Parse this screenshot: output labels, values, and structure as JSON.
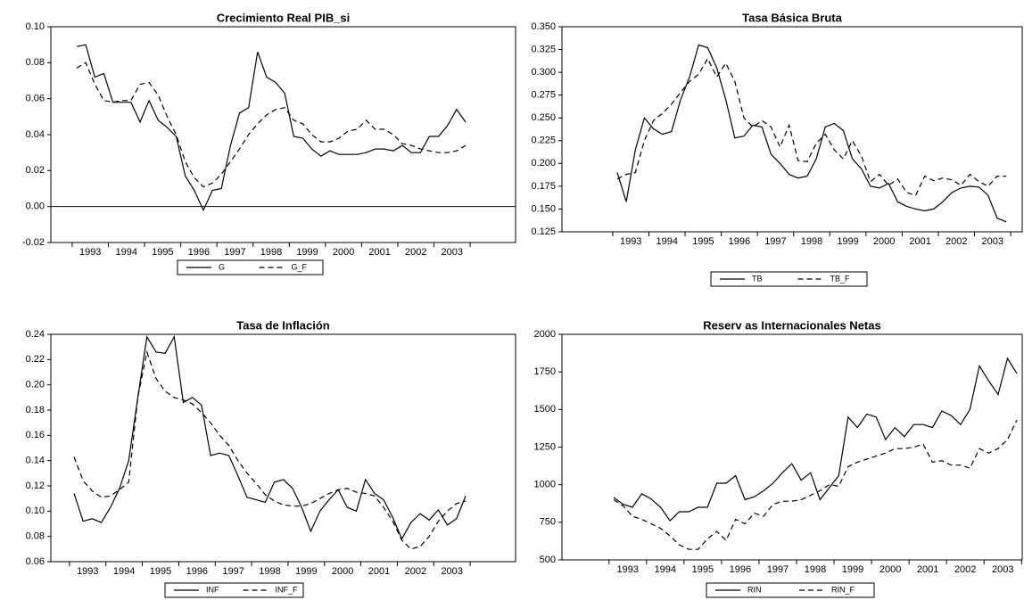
{
  "chart_data": [
    {
      "type": "line",
      "title": "Crecimiento Real PIB_si",
      "categories": [
        null,
        "1993",
        null,
        null,
        null,
        "1994",
        null,
        null,
        null,
        "1995",
        null,
        null,
        null,
        "1996",
        null,
        null,
        null,
        "1997",
        null,
        null,
        null,
        "1998",
        null,
        null,
        null,
        "1999",
        null,
        null,
        null,
        "2000",
        null,
        null,
        null,
        "2001",
        null,
        null,
        null,
        "2002",
        null,
        null,
        null,
        "2003",
        null,
        null
      ],
      "series": [
        {
          "name": "G",
          "color": "#000000",
          "style": "solid",
          "values": [
            0.089,
            0.09,
            0.072,
            0.074,
            0.058,
            0.058,
            0.058,
            0.047,
            0.059,
            0.048,
            0.044,
            0.039,
            0.017,
            0.009,
            -0.002,
            0.009,
            0.01,
            0.034,
            0.052,
            0.055,
            0.086,
            0.072,
            0.069,
            0.063,
            0.039,
            0.038,
            0.032,
            0.028,
            0.031,
            0.029,
            0.029,
            0.029,
            0.03,
            0.032,
            0.032,
            0.031,
            0.034,
            0.03,
            0.03,
            0.039,
            0.039,
            0.045,
            0.054,
            0.047
          ]
        },
        {
          "name": "G_F",
          "color": "#000000",
          "style": "dashed",
          "values": [
            0.077,
            0.08,
            0.068,
            0.059,
            0.058,
            0.059,
            0.059,
            0.068,
            0.069,
            0.062,
            0.05,
            0.04,
            0.025,
            0.016,
            0.011,
            0.013,
            0.018,
            0.025,
            0.032,
            0.04,
            0.046,
            0.051,
            0.054,
            0.055,
            0.048,
            0.046,
            0.04,
            0.036,
            0.036,
            0.038,
            0.042,
            0.043,
            0.048,
            0.043,
            0.043,
            0.04,
            0.035,
            0.034,
            0.032,
            0.031,
            0.03,
            0.03,
            0.031,
            0.034
          ]
        }
      ],
      "ylim": [
        -0.02,
        0.1
      ],
      "yticks": [
        {
          "value": -0.02,
          "label": "-0.02"
        },
        {
          "value": 0,
          "label": "0.00"
        },
        {
          "value": 0.02,
          "label": "0.02"
        },
        {
          "value": 0.04,
          "label": "0.04"
        },
        {
          "value": 0.06,
          "label": "0.06"
        },
        {
          "value": 0.08,
          "label": "0.08"
        },
        {
          "value": 0.1,
          "label": "0.10"
        }
      ],
      "zero_line": true,
      "legend": "bottom"
    },
    {
      "type": "line",
      "title": "Tasa Básica Bruta",
      "categories": [
        null,
        "1993",
        null,
        null,
        null,
        "1994",
        null,
        null,
        null,
        "1995",
        null,
        null,
        null,
        "1996",
        null,
        null,
        null,
        "1997",
        null,
        null,
        null,
        "1998",
        null,
        null,
        null,
        "1999",
        null,
        null,
        null,
        "2000",
        null,
        null,
        null,
        "2001",
        null,
        null,
        null,
        "2002",
        null,
        null,
        null,
        "2003",
        null,
        null
      ],
      "series": [
        {
          "name": "TB",
          "color": "#000000",
          "style": "solid",
          "values": [
            0.19,
            0.158,
            0.215,
            0.25,
            0.238,
            0.232,
            0.235,
            0.27,
            0.295,
            0.33,
            0.327,
            0.305,
            0.27,
            0.228,
            0.23,
            0.242,
            0.24,
            0.21,
            0.2,
            0.188,
            0.184,
            0.186,
            0.205,
            0.24,
            0.244,
            0.236,
            0.205,
            0.194,
            0.175,
            0.173,
            0.178,
            0.158,
            0.153,
            0.15,
            0.148,
            0.15,
            0.158,
            0.168,
            0.173,
            0.175,
            0.174,
            0.165,
            0.14,
            0.136
          ]
        },
        {
          "name": "TB_F",
          "color": "#000000",
          "style": "dashed",
          "values": [
            0.183,
            0.188,
            0.19,
            0.225,
            0.247,
            0.255,
            0.265,
            0.278,
            0.29,
            0.298,
            0.315,
            0.295,
            0.31,
            0.29,
            0.25,
            0.24,
            0.247,
            0.24,
            0.218,
            0.242,
            0.203,
            0.202,
            0.222,
            0.232,
            0.215,
            0.205,
            0.225,
            0.208,
            0.18,
            0.188,
            0.176,
            0.183,
            0.168,
            0.165,
            0.186,
            0.181,
            0.184,
            0.182,
            0.176,
            0.188,
            0.18,
            0.175,
            0.186,
            0.186
          ]
        }
      ],
      "ylim": [
        0.125,
        0.35
      ],
      "yticks": [
        0.125,
        {
          "value": 0.15,
          "label": "0.150"
        },
        0.175,
        {
          "value": 0.2,
          "label": "0.200"
        },
        0.225,
        {
          "value": 0.25,
          "label": "0.250"
        },
        0.275,
        {
          "value": 0.3,
          "label": "0.300"
        },
        0.325,
        {
          "value": 0.35,
          "label": "0.350"
        }
      ],
      "legend": "bottom"
    },
    {
      "type": "line",
      "title": "Tasa de Inflación",
      "categories": [
        null,
        "1993",
        null,
        null,
        null,
        "1994",
        null,
        null,
        null,
        "1995",
        null,
        null,
        null,
        "1996",
        null,
        null,
        null,
        "1997",
        null,
        null,
        null,
        "1998",
        null,
        null,
        null,
        "1999",
        null,
        null,
        null,
        "2000",
        null,
        null,
        null,
        "2001",
        null,
        null,
        null,
        "2002",
        null,
        null,
        null,
        "2003",
        null,
        null
      ],
      "series": [
        {
          "name": "INF",
          "color": "#000000",
          "style": "solid",
          "values": [
            0.114,
            0.092,
            0.094,
            0.091,
            0.103,
            0.118,
            0.14,
            0.19,
            0.238,
            0.226,
            0.225,
            0.238,
            0.186,
            0.19,
            0.184,
            0.144,
            0.146,
            0.144,
            0.128,
            0.111,
            0.109,
            0.107,
            0.123,
            0.125,
            0.118,
            0.103,
            0.084,
            0.1,
            0.109,
            0.117,
            0.103,
            0.1,
            0.125,
            0.114,
            0.109,
            0.095,
            0.078,
            0.091,
            0.098,
            0.093,
            0.101,
            0.089,
            0.094,
            0.112
          ]
        },
        {
          "name": "INF_F",
          "color": "#000000",
          "style": "dashed",
          "values": [
            0.143,
            0.124,
            0.116,
            0.111,
            0.112,
            0.117,
            0.123,
            0.19,
            0.226,
            0.205,
            0.195,
            0.19,
            0.188,
            0.185,
            0.178,
            0.17,
            0.16,
            0.152,
            0.14,
            0.13,
            0.122,
            0.113,
            0.108,
            0.105,
            0.104,
            0.104,
            0.106,
            0.11,
            0.114,
            0.117,
            0.118,
            0.115,
            0.114,
            0.112,
            0.103,
            0.092,
            0.077,
            0.07,
            0.072,
            0.08,
            0.092,
            0.1,
            0.106,
            0.108
          ]
        }
      ],
      "ylim": [
        0.06,
        0.24
      ],
      "yticks": [
        {
          "value": 0.06,
          "label": "0.06"
        },
        {
          "value": 0.08,
          "label": "0.08"
        },
        {
          "value": 0.1,
          "label": "0.10"
        },
        {
          "value": 0.12,
          "label": "0.12"
        },
        {
          "value": 0.14,
          "label": "0.14"
        },
        {
          "value": 0.16,
          "label": "0.16"
        },
        {
          "value": 0.18,
          "label": "0.18"
        },
        {
          "value": 0.2,
          "label": "0.20"
        },
        {
          "value": 0.22,
          "label": "0.22"
        },
        {
          "value": 0.24,
          "label": "0.24"
        }
      ],
      "legend": "bottom"
    },
    {
      "type": "line",
      "title": "Reserv as Internacionales Netas",
      "categories": [
        null,
        "1993",
        null,
        null,
        null,
        "1994",
        null,
        null,
        null,
        "1995",
        null,
        null,
        null,
        "1996",
        null,
        null,
        null,
        "1997",
        null,
        null,
        null,
        "1998",
        null,
        null,
        null,
        "1999",
        null,
        null,
        null,
        "2000",
        null,
        null,
        null,
        "2001",
        null,
        null,
        null,
        "2002",
        null,
        null,
        null,
        "2003",
        null,
        null
      ],
      "series": [
        {
          "name": "RIN",
          "color": "#000000",
          "style": "solid",
          "values": [
            915,
            870,
            850,
            940,
            905,
            850,
            760,
            820,
            820,
            850,
            850,
            1010,
            1010,
            1060,
            900,
            920,
            960,
            1010,
            1080,
            1140,
            1030,
            1080,
            900,
            980,
            1060,
            1450,
            1380,
            1470,
            1450,
            1300,
            1380,
            1320,
            1400,
            1400,
            1380,
            1490,
            1460,
            1400,
            1500,
            1790,
            1690,
            1600,
            1840,
            1740
          ]
        },
        {
          "name": "RIN_F",
          "color": "#000000",
          "style": "dashed",
          "values": [
            900,
            860,
            790,
            770,
            740,
            710,
            660,
            600,
            570,
            570,
            640,
            690,
            630,
            770,
            740,
            810,
            790,
            870,
            890,
            890,
            900,
            930,
            960,
            1000,
            990,
            1120,
            1150,
            1170,
            1190,
            1210,
            1240,
            1240,
            1250,
            1270,
            1150,
            1160,
            1130,
            1130,
            1110,
            1240,
            1210,
            1240,
            1300,
            1430
          ]
        }
      ],
      "ylim": [
        500,
        2000
      ],
      "yticks": [
        500,
        750,
        1000,
        1250,
        1500,
        1750,
        2000
      ],
      "legend": "bottom"
    }
  ]
}
